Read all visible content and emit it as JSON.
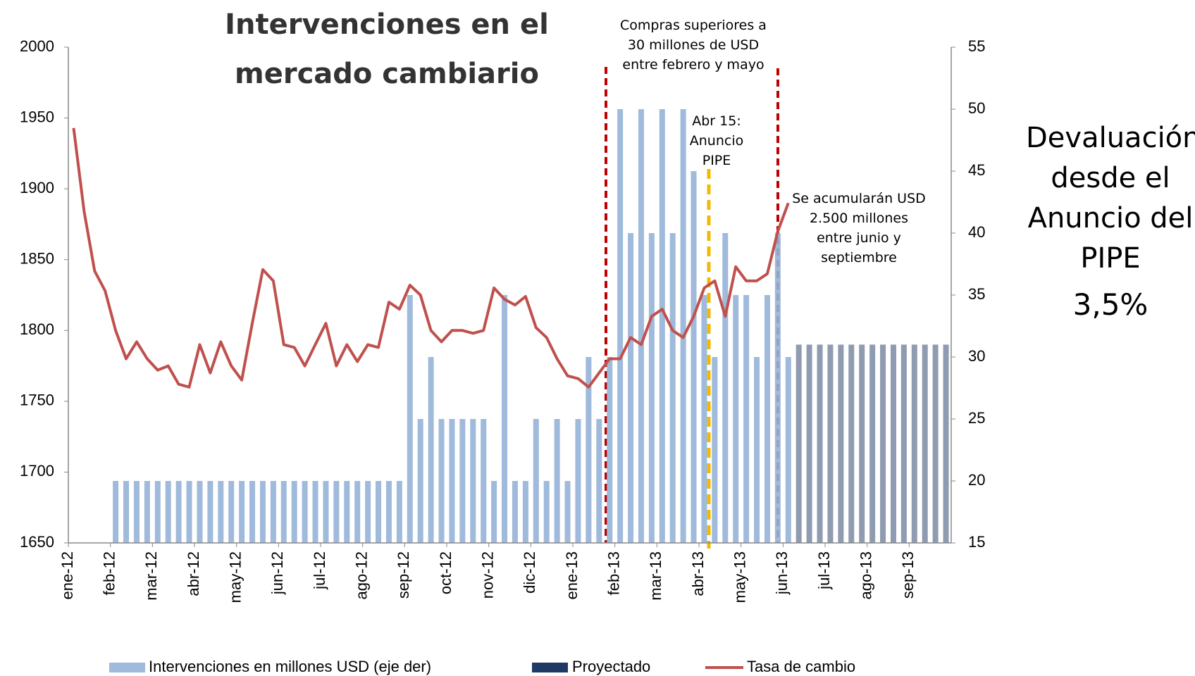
{
  "chart_data": {
    "type": "bar",
    "title": "Intervenciones en el mercado cambiario",
    "annotations": [
      "Compras superiores a 30 millones de USD entre febrero y mayo",
      "Abr 15: Anuncio PIPE",
      "Se acumularán USD 2.500 millones entre junio y septiembre",
      "Devaluación desde el Anuncio del PIPE",
      "3,5%"
    ],
    "categories": [
      "ene-12",
      null,
      null,
      null,
      "feb-12",
      null,
      null,
      null,
      "mar-12",
      null,
      null,
      null,
      "abr-12",
      null,
      null,
      null,
      "may-12",
      null,
      null,
      null,
      "jun-12",
      null,
      null,
      null,
      "jul-12",
      null,
      null,
      null,
      "ago-12",
      null,
      null,
      null,
      "sep-12",
      null,
      null,
      null,
      "oct-12",
      null,
      null,
      null,
      "nov-12",
      null,
      null,
      null,
      "dic-12",
      null,
      null,
      null,
      "ene-13",
      null,
      null,
      null,
      "feb-13",
      null,
      null,
      null,
      "mar-13",
      null,
      null,
      null,
      "abr-13",
      null,
      null,
      null,
      "may-13",
      null,
      null,
      null,
      "jun-13",
      null,
      null,
      null,
      "jul-13",
      null,
      null,
      null,
      "ago-13",
      null,
      null,
      null,
      "sep-13",
      null,
      null,
      null
    ],
    "series": [
      {
        "name": "Intervenciones en millones USD (eje der)",
        "color": "#95b3d7",
        "axis": "y2",
        "values": [
          null,
          null,
          null,
          null,
          20,
          20,
          20,
          20,
          20,
          20,
          20,
          20,
          20,
          20,
          20,
          20,
          20,
          20,
          20,
          20,
          20,
          20,
          20,
          20,
          20,
          20,
          20,
          20,
          20,
          20,
          20,
          20,
          35,
          25,
          30,
          25,
          25,
          25,
          25,
          25,
          20,
          35,
          20,
          20,
          25,
          20,
          25,
          20,
          25,
          30,
          25,
          30,
          50,
          40,
          50,
          40,
          50,
          40,
          50,
          45,
          35,
          30,
          40,
          35,
          35,
          30,
          35,
          40,
          30,
          null,
          null,
          null,
          null,
          null,
          null,
          null,
          null,
          null,
          null,
          null,
          null,
          null,
          null,
          null
        ]
      },
      {
        "name": "Proyectado",
        "color": "#1f3864",
        "axis": "y2",
        "values": [
          null,
          null,
          null,
          null,
          null,
          null,
          null,
          null,
          null,
          null,
          null,
          null,
          null,
          null,
          null,
          null,
          null,
          null,
          null,
          null,
          null,
          null,
          null,
          null,
          null,
          null,
          null,
          null,
          null,
          null,
          null,
          null,
          null,
          null,
          null,
          null,
          null,
          null,
          null,
          null,
          null,
          null,
          null,
          null,
          null,
          null,
          null,
          null,
          null,
          null,
          null,
          null,
          null,
          null,
          null,
          null,
          null,
          null,
          null,
          null,
          null,
          null,
          null,
          null,
          null,
          null,
          null,
          null,
          null,
          31,
          31,
          31,
          31,
          31,
          31,
          31,
          31,
          31,
          31,
          31,
          31,
          31,
          31,
          31
        ]
      },
      {
        "name": "Tasa de cambio",
        "color": "#c0504d",
        "type": "line",
        "values": [
          1943,
          1884,
          1842,
          1828,
          1800,
          1780,
          1792,
          1780,
          1772,
          1775,
          1762,
          1760,
          1790,
          1770,
          1792,
          1775,
          1765,
          1805,
          1843,
          1835,
          1790,
          1788,
          1775,
          1790,
          1805,
          1775,
          1790,
          1778,
          1790,
          1788,
          1820,
          1815,
          1832,
          1825,
          1800,
          1792,
          1800,
          1800,
          1798,
          1800,
          1830,
          1822,
          1818,
          1824,
          1802,
          1795,
          1780,
          1768,
          1766,
          1760,
          1770,
          1780,
          1780,
          1795,
          1790,
          1810,
          1815,
          1800,
          1795,
          1810,
          1830,
          1835,
          1810,
          1845,
          1835,
          1835,
          1840,
          1870,
          1890,
          null,
          null,
          null,
          null,
          null,
          null,
          null,
          null,
          null,
          null,
          null,
          null,
          null,
          null,
          null
        ]
      }
    ],
    "ylim": [
      1650,
      2000
    ],
    "yticks": [
      1650,
      1700,
      1750,
      1800,
      1850,
      1900,
      1950,
      2000
    ],
    "y2lim": [
      15,
      55
    ],
    "y2ticks": [
      15,
      20,
      25,
      30,
      35,
      40,
      45,
      50,
      55
    ],
    "grid": false
  }
}
